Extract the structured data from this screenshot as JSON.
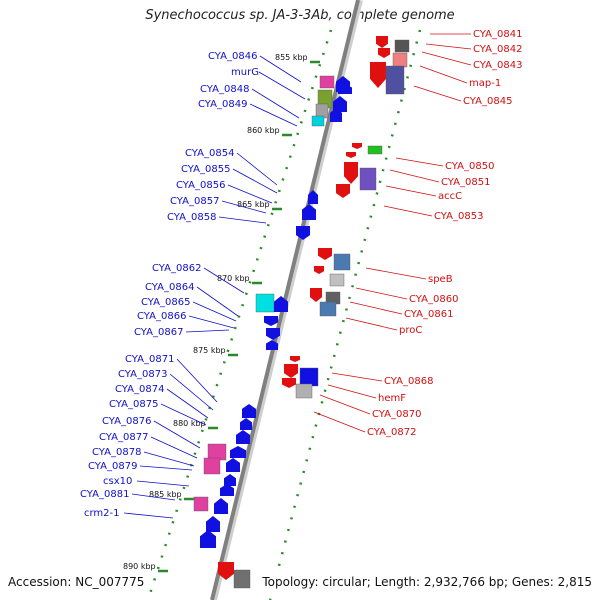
{
  "title": "Synechococcus sp. JA-3-3Ab, complete genome",
  "footer": {
    "accession": "Accession: NC_007775",
    "summary": "Topology: circular; Length: 2,932,766 bp; Genes: 2,815"
  },
  "colors": {
    "minus_strand_label": "#1010c8",
    "plus_strand_label": "#d01010",
    "axis": "#808080",
    "tick": "#2a8a2a"
  },
  "kbp_markers": [
    "855 kbp",
    "860 kbp",
    "865 kbp",
    "870 kbp",
    "875 kbp",
    "880 kbp",
    "885 kbp",
    "890 kbp"
  ],
  "left_genes": [
    "CYA_0846",
    "murG",
    "CYA_0848",
    "CYA_0849",
    "CYA_0854",
    "CYA_0855",
    "CYA_0856",
    "CYA_0857",
    "CYA_0858",
    "CYA_0862",
    "CYA_0864",
    "CYA_0865",
    "CYA_0866",
    "CYA_0867",
    "CYA_0871",
    "CYA_0873",
    "CYA_0874",
    "CYA_0875",
    "CYA_0876",
    "CYA_0877",
    "CYA_0878",
    "CYA_0879",
    "csx10",
    "CYA_0881",
    "crm2-1"
  ],
  "right_genes": [
    "CYA_0841",
    "CYA_0842",
    "CYA_0843",
    "map-1",
    "CYA_0845",
    "CYA_0850",
    "CYA_0851",
    "accC",
    "CYA_0853",
    "speB",
    "CYA_0860",
    "CYA_0861",
    "proC",
    "CYA_0868",
    "hemF",
    "CYA_0870",
    "CYA_0872"
  ]
}
